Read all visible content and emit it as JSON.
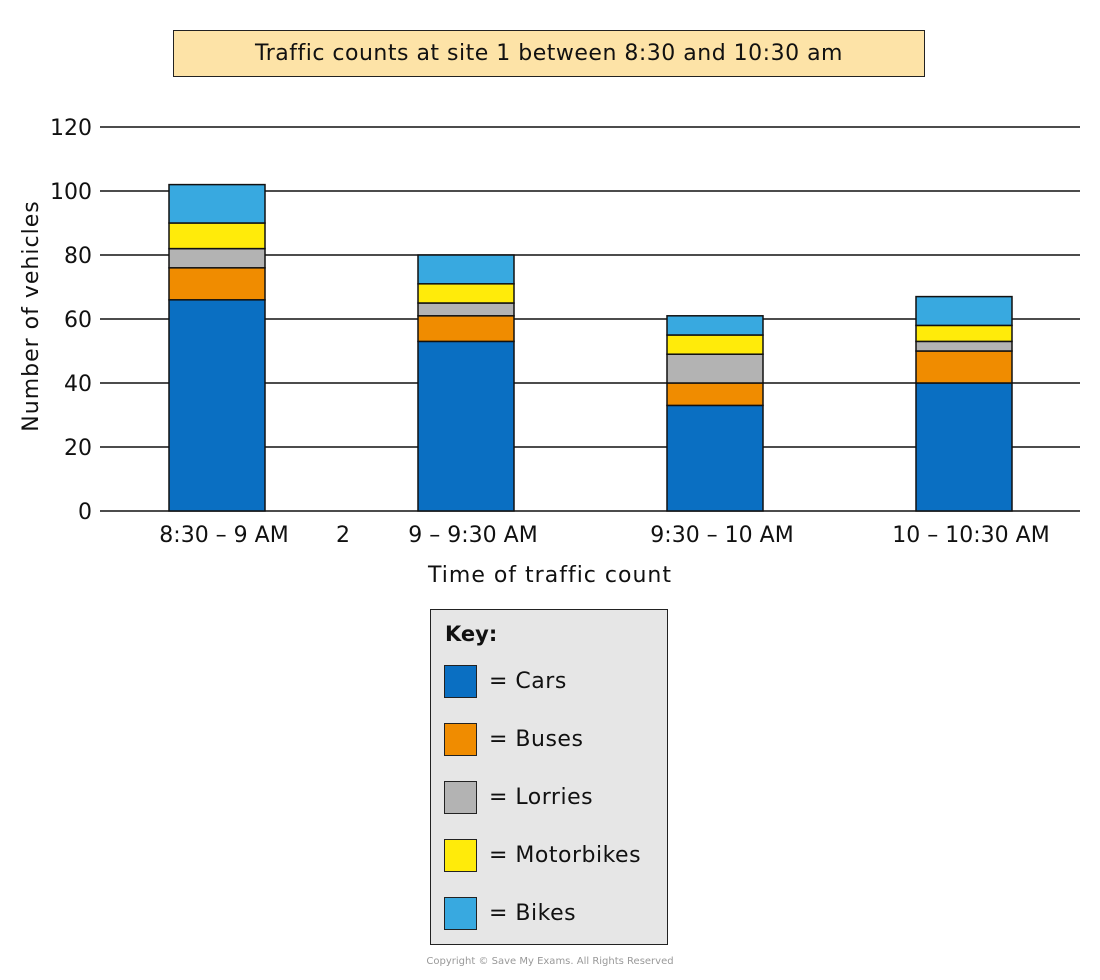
{
  "chart_data": {
    "type": "bar",
    "stacked": true,
    "title": "Traffic counts at site 1 between 8:30 and 10:30 am",
    "xlabel": "Time of traffic count",
    "ylabel": "Number of vehicles",
    "ylim": [
      0,
      120
    ],
    "yticks": [
      0,
      20,
      40,
      60,
      80,
      100,
      120
    ],
    "grid": true,
    "categories": [
      "8:30 – 9 AM",
      "9 – 9:30 AM",
      "9:30 – 10 AM",
      "10 – 10:30 AM"
    ],
    "stray_label": "2",
    "series": [
      {
        "name": "Cars",
        "color": "#0a6fc2",
        "values": [
          66,
          53,
          33,
          40
        ]
      },
      {
        "name": "Buses",
        "color": "#f08c00",
        "values": [
          10,
          8,
          7,
          10
        ]
      },
      {
        "name": "Lorries",
        "color": "#b3b3b3",
        "values": [
          6,
          4,
          9,
          3
        ]
      },
      {
        "name": "Motorbikes",
        "color": "#ffeb0a",
        "values": [
          8,
          6,
          6,
          5
        ]
      },
      {
        "name": "Bikes",
        "color": "#38a9e0",
        "values": [
          12,
          9,
          6,
          9
        ]
      }
    ]
  },
  "key": {
    "title": "Key:",
    "items": [
      {
        "label": "= Cars",
        "color": "#0a6fc2"
      },
      {
        "label": "= Buses",
        "color": "#f08c00"
      },
      {
        "label": "= Lorries",
        "color": "#b3b3b3"
      },
      {
        "label": "= Motorbikes",
        "color": "#ffeb0a"
      },
      {
        "label": "= Bikes",
        "color": "#38a9e0"
      }
    ]
  },
  "copyright": "Copyright © Save My Exams. All Rights Reserved"
}
